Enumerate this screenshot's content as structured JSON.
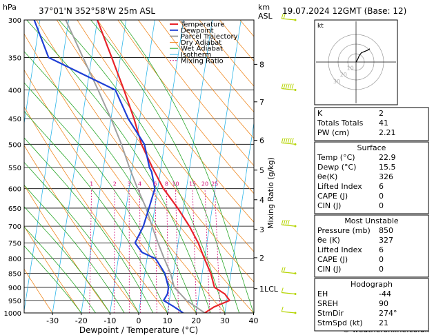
{
  "header": {
    "hpa": "hPa",
    "location": "37°01'N 352°58'W 25m ASL",
    "km": "km",
    "asl": "ASL",
    "datetime": "19.07.2024 12GMT (Base: 12)"
  },
  "footer": {
    "copyright": "© weatheronline.co.uk"
  },
  "colors": {
    "temperature": "#e8232a",
    "dewpoint": "#1f3fd6",
    "parcel": "#a0a0a0",
    "dry_adiabat": "#f08a24",
    "wet_adiabat": "#2aa82a",
    "isotherm": "#2bb5e8",
    "mixing_ratio": "#d4147a",
    "wind": "#b5d400"
  },
  "chart_data": {
    "type": "line",
    "title": "",
    "xlabel": "Dewpoint / Temperature (°C)",
    "ylabel": "hPa",
    "right_label": "Mixing Ratio (g/kg)",
    "xlim": [
      -35,
      40
    ],
    "ylim": [
      1000,
      300
    ],
    "x_ticks": [
      -30,
      -20,
      -10,
      0,
      10,
      20,
      30,
      40
    ],
    "pressure_levels": [
      300,
      350,
      400,
      450,
      500,
      550,
      600,
      650,
      700,
      750,
      800,
      850,
      900,
      950,
      1000
    ],
    "km_ticks": [
      {
        "label": "8",
        "p": 360
      },
      {
        "label": "7",
        "p": 420
      },
      {
        "label": "6",
        "p": 492
      },
      {
        "label": "5",
        "p": 556
      },
      {
        "label": "4",
        "p": 628
      },
      {
        "label": "3",
        "p": 710
      },
      {
        "label": "2",
        "p": 797
      },
      {
        "label": "1LCL",
        "p": 905
      }
    ],
    "mixing_ratio_labels": [
      "1",
      "2",
      "3",
      "4",
      "6",
      "8",
      "10",
      "15",
      "20",
      "25"
    ],
    "mixing_ratio_values": [
      1,
      2,
      3,
      4,
      6,
      8,
      10,
      15,
      20,
      25
    ],
    "legend": [
      "Temperature",
      "Dewpoint",
      "Parcel Trajectory",
      "Dry Adiabat",
      "Wet Adiabat",
      "Isotherm",
      "Mixing Ratio"
    ],
    "series": [
      {
        "name": "Temperature",
        "points": [
          [
            1000,
            23
          ],
          [
            975,
            26
          ],
          [
            950,
            31
          ],
          [
            925,
            29
          ],
          [
            900,
            25
          ],
          [
            850,
            23
          ],
          [
            800,
            20
          ],
          [
            750,
            17
          ],
          [
            700,
            13
          ],
          [
            650,
            8
          ],
          [
            600,
            2
          ],
          [
            550,
            -3
          ],
          [
            500,
            -8
          ],
          [
            450,
            -12
          ],
          [
            400,
            -17
          ],
          [
            350,
            -23
          ],
          [
            300,
            -30
          ]
        ]
      },
      {
        "name": "Dewpoint",
        "points": [
          [
            1000,
            15.5
          ],
          [
            975,
            12
          ],
          [
            950,
            8
          ],
          [
            925,
            9
          ],
          [
            900,
            9
          ],
          [
            850,
            7
          ],
          [
            800,
            3
          ],
          [
            780,
            -2
          ],
          [
            750,
            -5
          ],
          [
            700,
            -3
          ],
          [
            650,
            -2
          ],
          [
            600,
            -1
          ],
          [
            560,
            -3
          ],
          [
            550,
            -4
          ],
          [
            500,
            -7
          ],
          [
            450,
            -14
          ],
          [
            400,
            -20
          ],
          [
            350,
            -45
          ],
          [
            300,
            -52
          ]
        ]
      },
      {
        "name": "Parcel Trajectory",
        "points": [
          [
            1000,
            23
          ],
          [
            950,
            16
          ],
          [
            900,
            11
          ],
          [
            850,
            9
          ],
          [
            800,
            6
          ],
          [
            750,
            3
          ],
          [
            700,
            0
          ],
          [
            650,
            -3
          ],
          [
            600,
            -7
          ],
          [
            550,
            -11
          ],
          [
            500,
            -15
          ],
          [
            450,
            -20
          ],
          [
            400,
            -26
          ],
          [
            350,
            -33
          ],
          [
            300,
            -41
          ]
        ]
      }
    ],
    "wind_barbs": [
      {
        "p": 300,
        "dir": 270,
        "kt": 15
      },
      {
        "p": 400,
        "dir": 280,
        "kt": 55
      },
      {
        "p": 500,
        "dir": 270,
        "kt": 60
      },
      {
        "p": 700,
        "dir": 280,
        "kt": 35
      },
      {
        "p": 850,
        "dir": 250,
        "kt": 15
      },
      {
        "p": 925,
        "dir": 240,
        "kt": 10
      },
      {
        "p": 1000,
        "dir": 200,
        "kt": 5
      }
    ]
  },
  "hodograph": {
    "label": "kt",
    "ring_labels": [
      "10",
      "20",
      "30"
    ],
    "points": [
      [
        0,
        0
      ],
      [
        0.3,
        -0.5
      ],
      [
        0.6,
        -1.2
      ],
      [
        1.0,
        -1.7
      ],
      [
        1.5,
        -1.9
      ],
      [
        2.0,
        -2.1
      ],
      [
        2.5,
        -2.4
      ]
    ]
  },
  "indices": {
    "top": [
      {
        "label": "K",
        "value": "2"
      },
      {
        "label": "Totals Totals",
        "value": "41"
      },
      {
        "label": "PW (cm)",
        "value": "2.21"
      }
    ],
    "surface": {
      "title": "Surface",
      "rows": [
        {
          "label": "Temp (°C)",
          "value": "22.9"
        },
        {
          "label": "Dewp (°C)",
          "value": "15.5"
        },
        {
          "label": "θe(K)",
          "value": "326"
        },
        {
          "label": "Lifted Index",
          "value": "6"
        },
        {
          "label": "CAPE (J)",
          "value": "0"
        },
        {
          "label": "CIN (J)",
          "value": "0"
        }
      ]
    },
    "unstable": {
      "title": "Most Unstable",
      "rows": [
        {
          "label": "Pressure (mb)",
          "value": "850"
        },
        {
          "label": "θe (K)",
          "value": "327"
        },
        {
          "label": "Lifted Index",
          "value": "6"
        },
        {
          "label": "CAPE (J)",
          "value": "0"
        },
        {
          "label": "CIN (J)",
          "value": "0"
        }
      ]
    },
    "hodo": {
      "title": "Hodograph",
      "rows": [
        {
          "label": "EH",
          "value": "-44"
        },
        {
          "label": "SREH",
          "value": "90"
        },
        {
          "label": "StmDir",
          "value": "274°"
        },
        {
          "label": "StmSpd (kt)",
          "value": "21"
        }
      ]
    }
  }
}
